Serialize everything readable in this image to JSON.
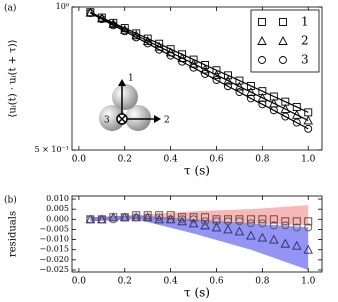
{
  "chart_data": [
    {
      "type": "line",
      "panel_label": "(a)",
      "ylabel": "⟨uᵢ(t) · uᵢ(t + τ)⟩",
      "xlabel": "τ (s)",
      "log_y": true,
      "xlim": [
        -0.03,
        1.06
      ],
      "ylim": [
        0.5,
        1.0
      ],
      "xticks": [
        {
          "value": 0,
          "label": "0.0"
        },
        {
          "value": 0.2,
          "label": "0.2"
        },
        {
          "value": 0.4,
          "label": "0.4"
        },
        {
          "value": 0.6,
          "label": "0.6"
        },
        {
          "value": 0.8,
          "label": "0.8"
        },
        {
          "value": 1,
          "label": "1.0"
        }
      ],
      "yticks": [
        {
          "value": 1,
          "label": "10⁰"
        },
        {
          "value": 0.5,
          "label": "5 × 10⁻¹"
        }
      ],
      "legend": "upper right",
      "inset": {
        "labels": [
          "1",
          "2",
          "3"
        ]
      },
      "x": [
        0.05,
        0.1,
        0.15,
        0.2,
        0.25,
        0.3,
        0.35,
        0.4,
        0.45,
        0.5,
        0.55,
        0.6,
        0.65,
        0.7,
        0.75,
        0.8,
        0.85,
        0.9,
        0.95,
        1.0
      ],
      "series": [
        {
          "name": "1",
          "marker": "square",
          "color": "#000000",
          "values": [
            0.975,
            0.95,
            0.926,
            0.903,
            0.88,
            0.858,
            0.837,
            0.815,
            0.795,
            0.775,
            0.755,
            0.736,
            0.718,
            0.7,
            0.682,
            0.665,
            0.648,
            0.632,
            0.616,
            0.6
          ]
        },
        {
          "name": "2",
          "marker": "triangle",
          "color": "#000000",
          "values": [
            0.973,
            0.946,
            0.921,
            0.896,
            0.872,
            0.848,
            0.825,
            0.803,
            0.781,
            0.76,
            0.739,
            0.719,
            0.7,
            0.68,
            0.662,
            0.644,
            0.627,
            0.61,
            0.593,
            0.577
          ]
        },
        {
          "name": "3",
          "marker": "circle",
          "color": "#000000",
          "values": [
            0.971,
            0.943,
            0.915,
            0.889,
            0.863,
            0.838,
            0.813,
            0.79,
            0.767,
            0.745,
            0.723,
            0.702,
            0.681,
            0.662,
            0.642,
            0.624,
            0.606,
            0.588,
            0.571,
            0.554
          ]
        }
      ]
    },
    {
      "type": "residual",
      "panel_label": "(b)",
      "ylabel": "residuals",
      "xlabel": "τ (s)",
      "xlim": [
        -0.03,
        1.06
      ],
      "ylim": [
        -0.026,
        0.0115
      ],
      "xticks": [
        {
          "value": 0,
          "label": "0.0"
        },
        {
          "value": 0.2,
          "label": "0.2"
        },
        {
          "value": 0.4,
          "label": "0.4"
        },
        {
          "value": 0.6,
          "label": "0.6"
        },
        {
          "value": 0.8,
          "label": "0.8"
        },
        {
          "value": 1,
          "label": "1.0"
        }
      ],
      "yticks": [
        {
          "value": 0.01,
          "label": "0.010"
        },
        {
          "value": 0.005,
          "label": "0.005"
        },
        {
          "value": 0,
          "label": "0.000"
        },
        {
          "value": -0.005,
          "label": "−0.005"
        },
        {
          "value": -0.01,
          "label": "−0.010"
        },
        {
          "value": -0.015,
          "label": "−0.015"
        },
        {
          "value": -0.02,
          "label": "−0.020"
        },
        {
          "value": -0.025,
          "label": "−0.025"
        }
      ],
      "bands": [
        {
          "color": "#f4a0a0",
          "x": [
            0.05,
            0.25,
            0.5,
            0.75,
            1.0
          ],
          "upper": [
            0.001,
            0.002,
            0.004,
            0.005,
            0.007
          ],
          "lower": [
            -0.001,
            0.0,
            -0.001,
            -0.002,
            -0.003
          ]
        },
        {
          "color": "#7070f0",
          "x": [
            0.05,
            0.25,
            0.5,
            0.75,
            1.0
          ],
          "upper": [
            0.001,
            0.002,
            0.0,
            -0.002,
            -0.004
          ],
          "lower": [
            -0.001,
            0.0,
            -0.007,
            -0.015,
            -0.025
          ]
        }
      ],
      "x": [
        0.05,
        0.1,
        0.15,
        0.2,
        0.25,
        0.3,
        0.35,
        0.4,
        0.45,
        0.5,
        0.55,
        0.6,
        0.65,
        0.7,
        0.75,
        0.8,
        0.85,
        0.9,
        0.95,
        1.0
      ],
      "series": [
        {
          "name": "1",
          "marker": "square",
          "color": "#6b3a2e",
          "values": [
            0.0,
            0.0,
            0.001,
            0.001,
            0.002,
            0.002,
            0.002,
            0.002,
            0.001,
            0.001,
            0.001,
            0.0,
            0.0,
            0.0,
            0.0,
            0.0,
            0.0,
            -0.001,
            -0.001,
            -0.001
          ]
        },
        {
          "name": "2",
          "marker": "triangle",
          "color": "#2a2a66",
          "values": [
            0.0,
            0.0,
            0.001,
            0.001,
            0.001,
            0.001,
            0.0,
            0.0,
            -0.001,
            -0.002,
            -0.003,
            -0.004,
            -0.005,
            -0.006,
            -0.008,
            -0.009,
            -0.01,
            -0.012,
            -0.013,
            -0.015
          ]
        },
        {
          "name": "3",
          "marker": "circle",
          "color": "#555555",
          "values": [
            0.0,
            0.0,
            0.0,
            0.001,
            0.001,
            0.001,
            0.001,
            0.0,
            0.0,
            0.0,
            -0.001,
            -0.001,
            -0.001,
            -0.001,
            -0.002,
            -0.002,
            -0.003,
            -0.003,
            -0.004,
            -0.004
          ]
        }
      ]
    }
  ]
}
